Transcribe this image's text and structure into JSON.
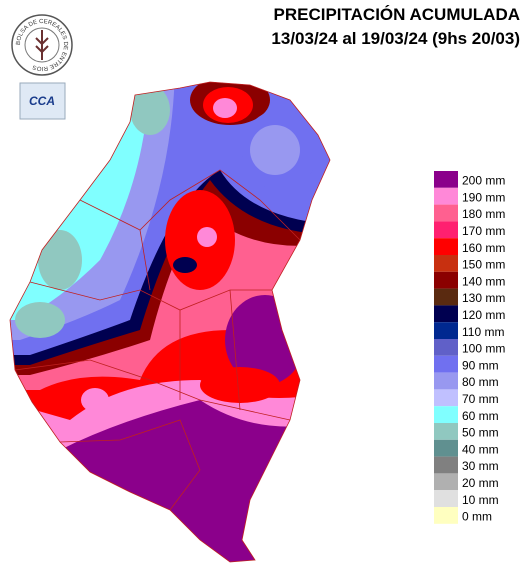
{
  "header": {
    "title": "PRECIPITACIÓN ACUMULADA",
    "period": "13/03/24 al 19/03/24 (9hs 20/03)"
  },
  "logos": {
    "bolsa": "BOLSA DE CEREALES DE ENTRE RIOS",
    "cca": "CCA"
  },
  "legend": {
    "items": [
      {
        "label": "200 mm",
        "color": "#8b008b"
      },
      {
        "label": "190 mm",
        "color": "#ff88d8"
      },
      {
        "label": "180 mm",
        "color": "#ff6090"
      },
      {
        "label": "170 mm",
        "color": "#ff2070"
      },
      {
        "label": "160 mm",
        "color": "#ff0000"
      },
      {
        "label": "150 mm",
        "color": "#c83010"
      },
      {
        "label": "140 mm",
        "color": "#8b0000"
      },
      {
        "label": "130 mm",
        "color": "#5a2a10"
      },
      {
        "label": "120 mm",
        "color": "#000050"
      },
      {
        "label": "110 mm",
        "color": "#002890"
      },
      {
        "label": "100 mm",
        "color": "#6060c8"
      },
      {
        "label": "90 mm",
        "color": "#7070f0"
      },
      {
        "label": "80 mm",
        "color": "#9898f0"
      },
      {
        "label": "70 mm",
        "color": "#c0c0ff"
      },
      {
        "label": "60 mm",
        "color": "#80ffff"
      },
      {
        "label": "50 mm",
        "color": "#90c8c0"
      },
      {
        "label": "40 mm",
        "color": "#609090"
      },
      {
        "label": "30 mm",
        "color": "#808080"
      },
      {
        "label": "20 mm",
        "color": "#b0b0b0"
      },
      {
        "label": "10 mm",
        "color": "#e0e0e0"
      },
      {
        "label": "0 mm",
        "color": "#ffffc0"
      }
    ]
  }
}
